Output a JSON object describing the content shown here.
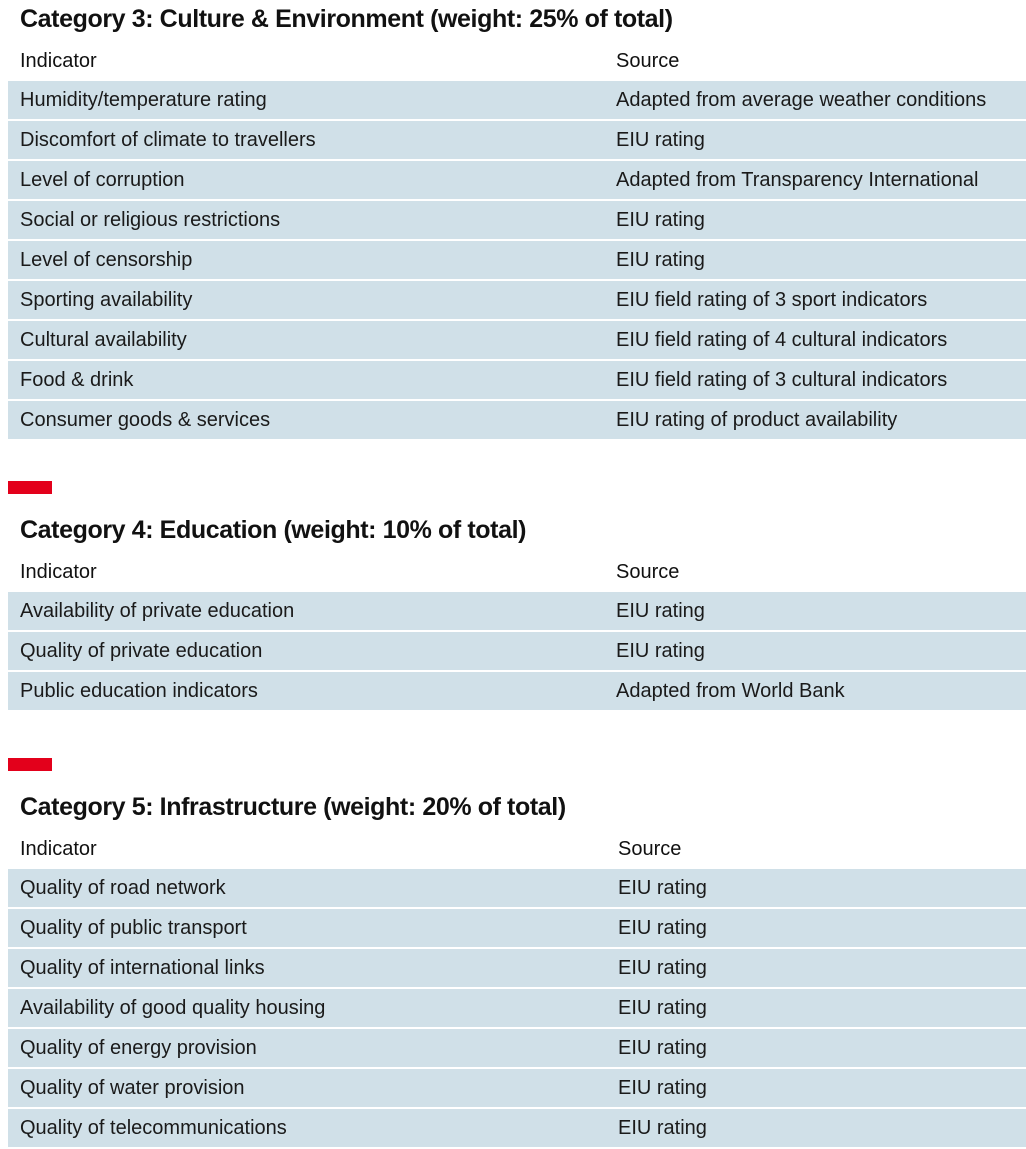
{
  "category3": {
    "title": "Category 3: Culture & Environment (weight: 25% of total)",
    "header": {
      "indicator": "Indicator",
      "source": "Source"
    },
    "rows": [
      {
        "indicator": "Humidity/temperature rating",
        "source": "Adapted from average weather conditions"
      },
      {
        "indicator": "Discomfort of climate to travellers",
        "source": "EIU rating"
      },
      {
        "indicator": "Level of corruption",
        "source": "Adapted from Transparency International"
      },
      {
        "indicator": "Social or religious restrictions",
        "source": "EIU rating"
      },
      {
        "indicator": "Level of censorship",
        "source": "EIU rating"
      },
      {
        "indicator": "Sporting availability",
        "source": "EIU field rating of 3 sport indicators"
      },
      {
        "indicator": "Cultural availability",
        "source": "EIU field rating of 4 cultural indicators"
      },
      {
        "indicator": "Food & drink",
        "source": "EIU field rating of 3 cultural indicators"
      },
      {
        "indicator": "Consumer goods & services",
        "source": "EIU rating of product availability"
      }
    ]
  },
  "category4": {
    "title": "Category 4: Education (weight: 10% of total)",
    "header": {
      "indicator": "Indicator",
      "source": "Source"
    },
    "rows": [
      {
        "indicator": "Availability of private education",
        "source": "EIU rating"
      },
      {
        "indicator": "Quality of private education",
        "source": "EIU rating"
      },
      {
        "indicator": "Public education indicators",
        "source": "Adapted from World Bank"
      }
    ]
  },
  "category5": {
    "title": "Category 5: Infrastructure (weight: 20% of total)",
    "header": {
      "indicator": "Indicator",
      "source": "Source"
    },
    "rows": [
      {
        "indicator": "Quality of road network",
        "source": "EIU rating"
      },
      {
        "indicator": "Quality of public transport",
        "source": "EIU rating"
      },
      {
        "indicator": "Quality of international links",
        "source": "EIU rating"
      },
      {
        "indicator": "Availability of good quality housing",
        "source": "EIU rating"
      },
      {
        "indicator": "Quality of energy provision",
        "source": "EIU rating"
      },
      {
        "indicator": "Quality of water provision",
        "source": "EIU rating"
      },
      {
        "indicator": "Quality of telecommunications",
        "source": "EIU rating"
      }
    ]
  },
  "colors": {
    "row_bg": "#d0e0e8",
    "accent_red": "#e3001b"
  }
}
